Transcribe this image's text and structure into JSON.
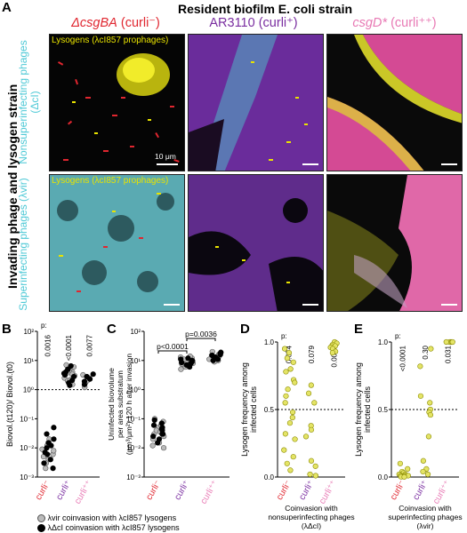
{
  "panel_a": {
    "letter": "A",
    "column_title": "Resident biofilm E. coli strain",
    "col_headers": [
      {
        "strain": "ΔcsgBA",
        "phenotype": "(curli⁻)",
        "color": "#e0262f"
      },
      {
        "strain": "AR3110",
        "phenotype": "(curli⁺)",
        "color": "#7a2ea0"
      },
      {
        "strain": "csgD*",
        "phenotype": "(curli⁺⁺)",
        "color": "#e879b4"
      }
    ],
    "row_title": "Invading phage and lysogen strain",
    "row_labels": [
      "Nonsuperinfecting phages (ΔcI)",
      "Superinfecting phages (λvir)"
    ],
    "lysogen_label": "Lysogens (λcI857 prophages)",
    "scale_bar": "10 μm"
  },
  "panel_b": {
    "letter": "B"
  },
  "panel_c": {
    "letter": "C"
  },
  "panel_d": {
    "letter": "D"
  },
  "panel_e": {
    "letter": "E"
  },
  "legend": {
    "gray": "λvir coinvasion with λcI857 lysogens",
    "black": "λΔcI coinvasion with λcI857 lysogens"
  },
  "colors": {
    "red": "#e0262f",
    "purple": "#7a2ea0",
    "pink": "#e879b4",
    "cyan": "#4ec9d6",
    "yellow": "#e9e300",
    "lysogen_fill": "#e4e466"
  },
  "chart_data": [
    {
      "id": "B",
      "type": "scatter",
      "ylabel": "Biovol.(t120)/ Biovol.(t0)",
      "yscale": "log",
      "ylim": [
        0.001,
        100
      ],
      "yticks": [
        "10⁻³",
        "10⁻²",
        "10⁻¹",
        "10⁰",
        "10¹",
        "10²"
      ],
      "categories": [
        "curli⁻",
        "curli⁺",
        "curli⁺⁺"
      ],
      "category_colors": [
        "#e0262f",
        "#7a2ea0",
        "#e879b4"
      ],
      "p_label": "p:",
      "p_values": [
        "0.0016",
        "<0.0001",
        "0.0077"
      ],
      "reference_line": 1,
      "series": [
        {
          "name": "λvir coinvasion",
          "style": "gray",
          "values": [
            [
              0.006,
              0.009,
              0.004,
              0.003,
              0.012,
              0.02,
              0.005,
              0.002,
              0.015,
              0.008
            ],
            [
              1.5,
              2.5,
              3,
              4,
              5,
              6,
              2,
              1.8,
              7,
              3.5,
              4.5,
              2.2,
              3.8
            ],
            [
              1.2,
              2,
              2.5,
              3.2,
              1.6
            ]
          ]
        },
        {
          "name": "λΔcI coinvasion",
          "style": "black",
          "values": [
            [
              0.01,
              0.02,
              0.004,
              0.007,
              0.03,
              0.003,
              0.015,
              0.05,
              0.002,
              0.006,
              0.012
            ],
            [
              1.4,
              2.8,
              5,
              3.2,
              6.5,
              2.1,
              4,
              1.7,
              3.6
            ],
            [
              1.5,
              2.8,
              1.9,
              3.4,
              2.3
            ]
          ]
        }
      ]
    },
    {
      "id": "C",
      "type": "scatter",
      "ylabel": "Uninfected biovolume per area substratum (μm³/μm²) 120 h after invasion",
      "yscale": "log",
      "ylim": [
        0.001,
        100
      ],
      "yticks": [
        "10⁻³",
        "10⁻²",
        "10⁻¹",
        "10⁰",
        "10¹",
        "10²"
      ],
      "categories": [
        "curli⁻",
        "curli⁺",
        "curli⁺⁺"
      ],
      "category_colors": [
        "#e0262f",
        "#7a2ea0",
        "#e879b4"
      ],
      "brackets": [
        {
          "from": 0,
          "to": 1,
          "label": "p<0.0001"
        },
        {
          "from": 1,
          "to": 2,
          "label": "p=0.0036"
        }
      ],
      "series": [
        {
          "name": "λvir coinvasion",
          "style": "gray",
          "values": [
            [
              0.01,
              0.02,
              0.03,
              0.05,
              0.08,
              0.04,
              0.015,
              0.06,
              0.025,
              0.1,
              0.035,
              0.012
            ],
            [
              5,
              7,
              9,
              10,
              12,
              6,
              8,
              11,
              14,
              9.5,
              7.5,
              13
            ],
            [
              10,
              12,
              15,
              18,
              20,
              9,
              14,
              16,
              11
            ]
          ]
        },
        {
          "name": "λΔcI coinvasion",
          "style": "black",
          "values": [
            [
              0.02,
              0.04,
              0.06,
              0.03,
              0.05,
              0.09,
              0.015,
              0.07,
              0.045,
              0.03,
              0.025
            ],
            [
              6,
              8,
              10,
              12,
              7,
              9,
              11,
              8.5
            ],
            [
              11,
              13,
              17,
              19,
              12,
              15,
              10,
              16
            ]
          ]
        }
      ]
    },
    {
      "id": "D",
      "type": "scatter",
      "ylabel": "Lysogen frequency among infected cells",
      "ylim": [
        0,
        1
      ],
      "yticks": [
        "0.0",
        "0.5",
        "1.0"
      ],
      "categories": [
        "curli⁻",
        "curli⁺",
        "curli⁺⁺"
      ],
      "category_colors": [
        "#e0262f",
        "#7a2ea0",
        "#e879b4"
      ],
      "p_label": "p:",
      "p_values": [
        "0.074",
        "0.079",
        "0.0010"
      ],
      "reference_line": 0.5,
      "xlabel": "Coinvasion with nonsuperinfecting phages (λΔcI)",
      "series": [
        {
          "name": "λΔcI coinvasion",
          "style": "yellow",
          "values": [
            [
              0.95,
              0.92,
              0.88,
              0.85,
              0.8,
              0.78,
              0.72,
              0.7,
              0.65,
              0.6,
              0.55,
              0.48,
              0.44,
              0.4,
              0.32,
              0.28,
              0.2,
              0.15,
              0.1,
              0.05
            ],
            [
              0.68,
              0.62,
              0.55,
              0.38,
              0.35,
              0.3,
              0.12,
              0.08,
              0.02,
              0.01
            ],
            [
              1.0,
              0.99,
              0.98,
              0.97,
              0.97,
              0.96,
              0.95,
              0.93,
              0.92
            ]
          ]
        }
      ]
    },
    {
      "id": "E",
      "type": "scatter",
      "ylabel": "Lysogen frequency among infected cells",
      "ylim": [
        0,
        1
      ],
      "yticks": [
        "0.0",
        "0.5",
        "1.0"
      ],
      "categories": [
        "curli⁻",
        "curli⁺",
        "curli⁺⁺"
      ],
      "category_colors": [
        "#e0262f",
        "#7a2ea0",
        "#e879b4"
      ],
      "p_label": "p:",
      "p_values": [
        "<0.0001",
        "0.30",
        "0.031"
      ],
      "reference_line": 0.5,
      "xlabel": "Coinvasion with superinfecting phages (λvir)",
      "series": [
        {
          "name": "λvir coinvasion",
          "style": "yellow",
          "values": [
            [
              0.1,
              0.06,
              0.04,
              0.03,
              0.02,
              0.02,
              0.01,
              0.01,
              0.01,
              0.005,
              0.005,
              0.003,
              0.002,
              0.001
            ],
            [
              0.95,
              0.82,
              0.6,
              0.55,
              0.5,
              0.48,
              0.46,
              0.3,
              0.12,
              0.06,
              0.04,
              0.02
            ],
            [
              1.0,
              1.0,
              1.0,
              1.0,
              1.0
            ]
          ]
        }
      ]
    }
  ]
}
